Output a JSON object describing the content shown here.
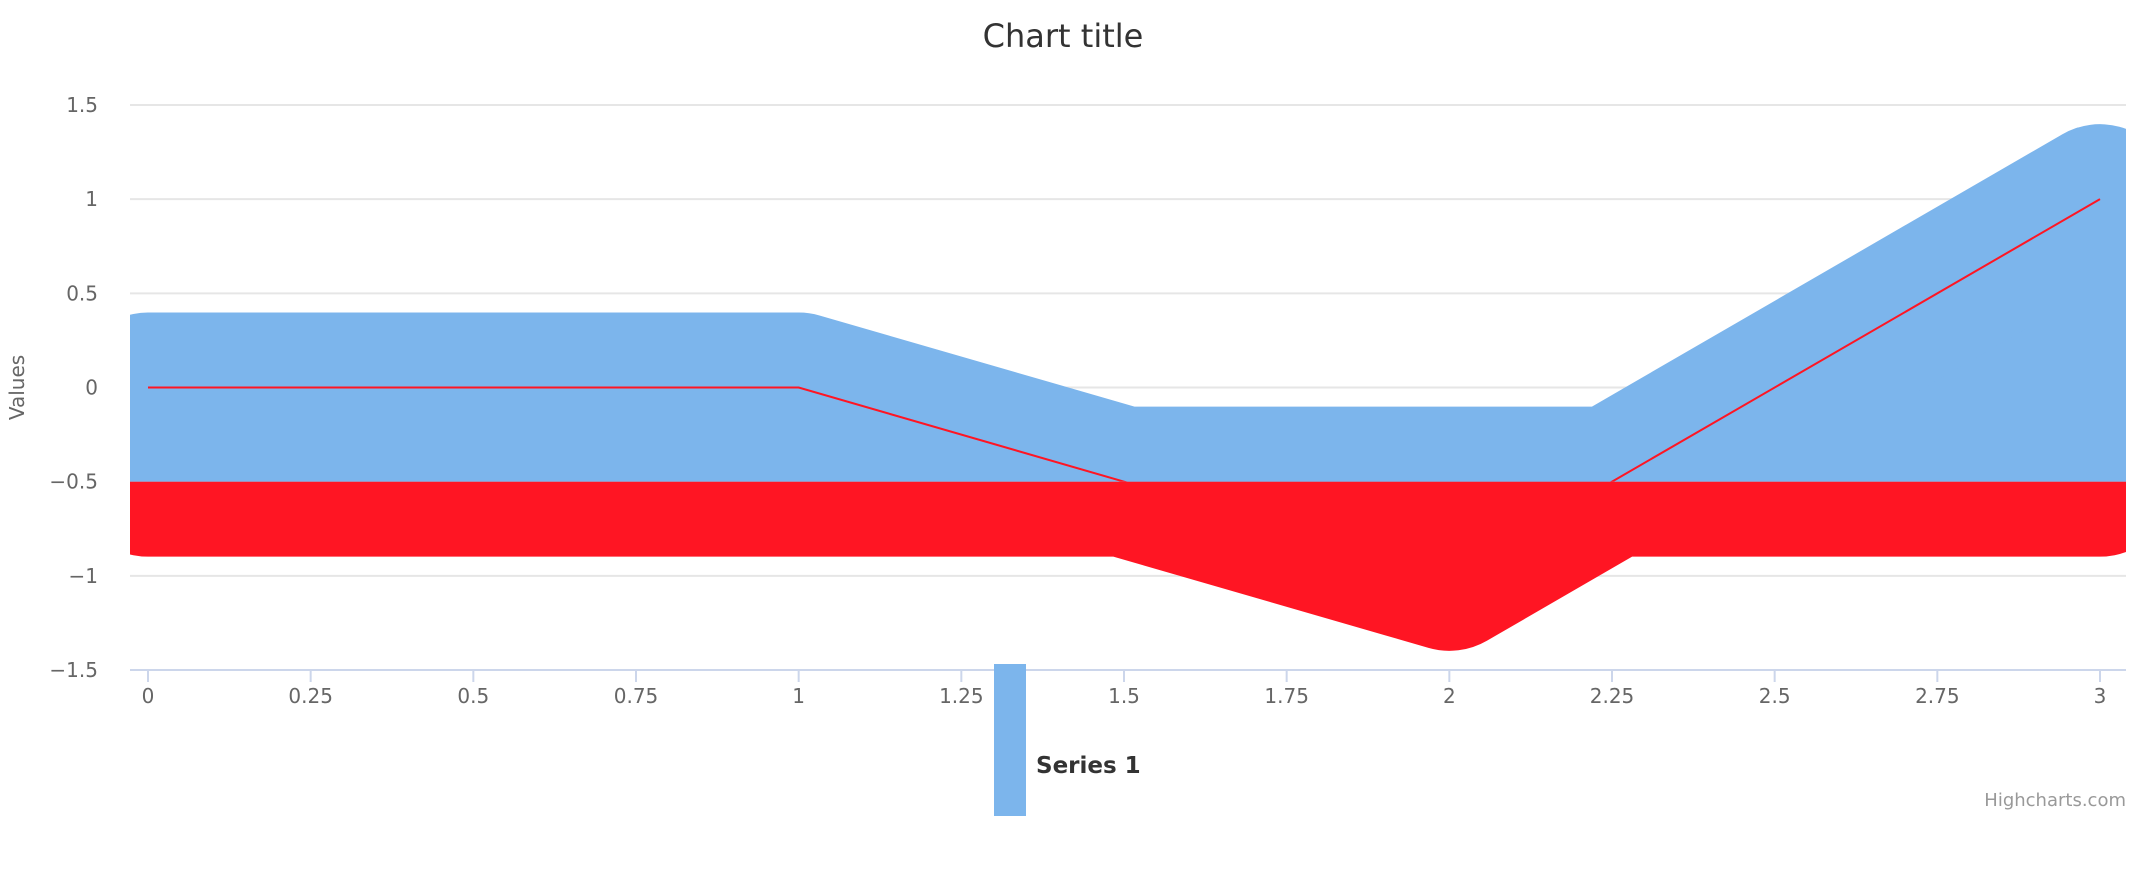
{
  "chart_data": {
    "type": "area",
    "title": "Chart title",
    "ylabel": "Values",
    "xlabel": "",
    "xlim": [
      0,
      3
    ],
    "ylim": [
      -1.5,
      1.5
    ],
    "x_ticks": [
      0,
      0.25,
      0.5,
      0.75,
      1,
      1.25,
      1.5,
      1.75,
      2,
      2.25,
      2.5,
      2.75,
      3
    ],
    "x_tick_labels": [
      "0",
      "0.25",
      "0.5",
      "0.75",
      "1",
      "1.25",
      "1.5",
      "1.75",
      "2",
      "2.25",
      "2.5",
      "2.75",
      "3"
    ],
    "y_ticks": [
      -1.5,
      -1,
      -0.5,
      0,
      0.5,
      1,
      1.5
    ],
    "y_tick_labels": [
      "−1.5",
      "−1",
      "−0.5",
      "0",
      "0.5",
      "1",
      "1.5"
    ],
    "grid": true,
    "threshold": -0.5,
    "series": [
      {
        "name": "Series 1",
        "color": "#7cb5ec",
        "negative_color": "#ff1523",
        "x": [
          0,
          1,
          2,
          3
        ],
        "y": [
          0,
          0,
          -1,
          1
        ]
      }
    ],
    "legend": {
      "position": "bottom-center"
    },
    "credits": "Highcharts.com"
  }
}
